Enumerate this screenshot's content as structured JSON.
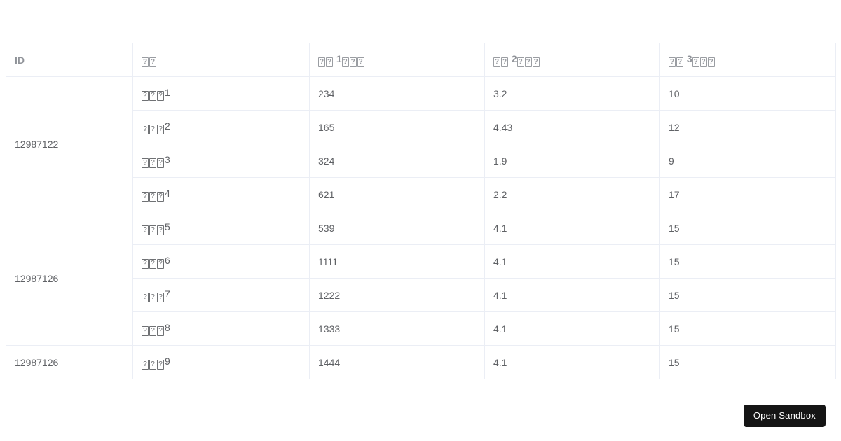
{
  "page": {
    "background_color": "#ffffff"
  },
  "table": {
    "border_color": "#ebeef5",
    "header_text_color": "#909399",
    "body_text_color": "#606266",
    "headers": [
      "ID",
      "⍰⍰",
      "⍰⍰ 1⍰⍰⍰",
      "⍰⍰ 2⍰⍰⍰",
      "⍰⍰ 3⍰⍰⍰"
    ],
    "rows": [
      {
        "id": "12987122",
        "id_rowspan": 4,
        "name": "⍰⍰⍰1",
        "value1": "234",
        "value2": "3.2",
        "value3": "10"
      },
      {
        "name": "⍰⍰⍰2",
        "value1": "165",
        "value2": "4.43",
        "value3": "12"
      },
      {
        "name": "⍰⍰⍰3",
        "value1": "324",
        "value2": "1.9",
        "value3": "9"
      },
      {
        "name": "⍰⍰⍰4",
        "value1": "621",
        "value2": "2.2",
        "value3": "17"
      },
      {
        "id": "12987126",
        "id_rowspan": 4,
        "name": "⍰⍰⍰5",
        "value1": "539",
        "value2": "4.1",
        "value3": "15"
      },
      {
        "name": "⍰⍰⍰6",
        "value1": "1111",
        "value2": "4.1",
        "value3": "15"
      },
      {
        "name": "⍰⍰⍰7",
        "value1": "1222",
        "value2": "4.1",
        "value3": "15"
      },
      {
        "name": "⍰⍰⍰8",
        "value1": "1333",
        "value2": "4.1",
        "value3": "15"
      },
      {
        "id": "12987126",
        "id_rowspan": 1,
        "name": "⍰⍰⍰9",
        "value1": "1444",
        "value2": "4.1",
        "value3": "15"
      }
    ]
  },
  "sandbox_button": {
    "label": "Open Sandbox",
    "background_color": "#151515",
    "text_color": "#ffffff"
  }
}
